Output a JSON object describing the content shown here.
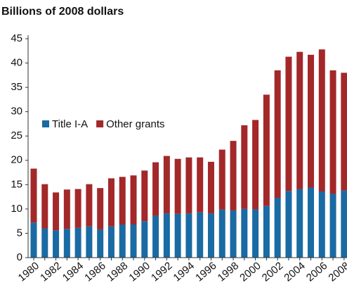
{
  "chart_data": {
    "type": "stacked_bar",
    "title": "Billions of 2008 dollars",
    "categories": [
      "1980",
      null,
      "1982",
      null,
      "1984",
      null,
      "1986",
      null,
      "1988",
      null,
      "1990",
      null,
      "1992",
      null,
      "1994",
      null,
      "1996",
      null,
      "1998",
      null,
      "2000",
      null,
      "2002",
      null,
      "2004",
      null,
      "2006",
      null,
      "2008"
    ],
    "series": [
      {
        "name": "Title I-A",
        "color": "#1a6aa3",
        "values": [
          7.2,
          6.0,
          5.6,
          5.9,
          6.1,
          6.4,
          5.8,
          6.4,
          6.8,
          6.8,
          7.5,
          8.6,
          9.1,
          9.0,
          9.1,
          9.3,
          9.1,
          9.9,
          9.7,
          10.0,
          9.9,
          10.6,
          12.3,
          13.7,
          14.1,
          14.4,
          13.6,
          13.1,
          13.8
        ]
      },
      {
        "name": "Other grants",
        "color": "#a3282a",
        "values": [
          11.1,
          9.1,
          7.8,
          8.1,
          8.0,
          8.7,
          8.5,
          9.9,
          9.8,
          10.1,
          10.4,
          11.0,
          11.8,
          11.3,
          11.5,
          11.3,
          10.6,
          12.3,
          14.3,
          17.2,
          18.4,
          22.9,
          26.2,
          27.6,
          28.2,
          27.3,
          29.2,
          25.4,
          24.2
        ]
      }
    ],
    "ylim": [
      0,
      45
    ],
    "yticks": [
      0,
      5,
      10,
      15,
      20,
      25,
      30,
      35,
      40,
      45
    ],
    "grid": false,
    "legend": "upper left"
  }
}
